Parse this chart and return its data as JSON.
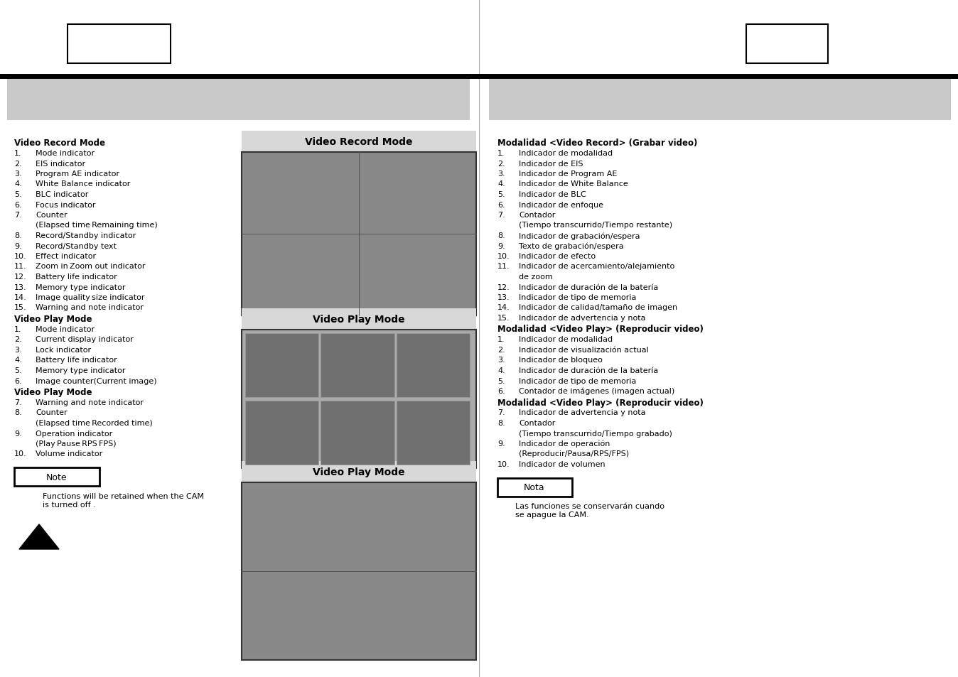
{
  "bg_color": "#ffffff",
  "left_header_text": "Video Record Mode",
  "left_items": [
    [
      "1.",
      "Mode indicator"
    ],
    [
      "2.",
      "EIS indicator"
    ],
    [
      "3.",
      "Program AE indicator"
    ],
    [
      "4.",
      "White Balance indicator"
    ],
    [
      "5.",
      "BLC indicator"
    ],
    [
      "6.",
      "Focus indicator"
    ],
    [
      "7.",
      "Counter"
    ],
    [
      "",
      "(Elapsed time Remaining time)"
    ],
    [
      "8.",
      "Record/Standby indicator"
    ],
    [
      "9.",
      "Record/Standby text"
    ],
    [
      "10.",
      "Effect indicator"
    ],
    [
      "11.",
      "Zoom in Zoom out indicator"
    ],
    [
      "12.",
      "Battery life indicator"
    ],
    [
      "13.",
      "Memory type indicator"
    ],
    [
      "14.",
      "Image quality size indicator"
    ],
    [
      "15.",
      "Warning and note indicator"
    ]
  ],
  "left_header2": "Video Play Mode",
  "left_items2": [
    [
      "1.",
      "Mode indicator"
    ],
    [
      "2.",
      "Current display indicator"
    ],
    [
      "3.",
      "Lock indicator"
    ],
    [
      "4.",
      "Battery life indicator"
    ],
    [
      "5.",
      "Memory type indicator"
    ],
    [
      "6.",
      "Image counter(Current image)"
    ]
  ],
  "left_header3": "Video Play Mode",
  "left_items3": [
    [
      "7.",
      "Warning and note indicator"
    ],
    [
      "8.",
      "Counter"
    ],
    [
      "",
      "(Elapsed time Recorded time)"
    ],
    [
      "9.",
      "Operation indicator"
    ],
    [
      "",
      "(Play Pause RPS FPS)"
    ],
    [
      "10.",
      "Volume indicator"
    ]
  ],
  "right_header_text": "Modalidad <Video Record> (Grabar video)",
  "right_items": [
    [
      "1.",
      "Indicador de modalidad"
    ],
    [
      "2.",
      "Indicador de EIS"
    ],
    [
      "3.",
      "Indicador de Program AE"
    ],
    [
      "4.",
      "Indicador de White Balance"
    ],
    [
      "5.",
      "Indicador de BLC"
    ],
    [
      "6.",
      "Indicador de enfoque"
    ],
    [
      "7.",
      "Contador"
    ],
    [
      "",
      "(Tiempo transcurrido/Tiempo restante)"
    ],
    [
      "8.",
      "Indicador de grabación/espera"
    ],
    [
      "9.",
      "Texto de grabación/espera"
    ],
    [
      "10.",
      "Indicador de efecto"
    ],
    [
      "11.",
      "Indicador de acercamiento/alejamiento"
    ],
    [
      "",
      "de zoom"
    ],
    [
      "12.",
      "Indicador de duración de la batería"
    ],
    [
      "13.",
      "Indicador de tipo de memoria"
    ],
    [
      "14.",
      "Indicador de calidad/tamaño de imagen"
    ],
    [
      "15.",
      "Indicador de advertencia y nota"
    ]
  ],
  "right_header2": "Modalidad <Video Play> (Reproducir video)",
  "right_items2": [
    [
      "1.",
      "Indicador de modalidad"
    ],
    [
      "2.",
      "Indicador de visualización actual"
    ],
    [
      "3.",
      "Indicador de bloqueo"
    ],
    [
      "4.",
      "Indicador de duración de la batería"
    ],
    [
      "5.",
      "Indicador de tipo de memoria"
    ],
    [
      "6.",
      "Contador de imágenes (imagen actual)"
    ]
  ],
  "right_header3": "Modalidad <Video Play> (Reproducir video)",
  "right_items3": [
    [
      "7.",
      "Indicador de advertencia y nota"
    ],
    [
      "8.",
      "Contador"
    ],
    [
      "",
      "(Tiempo transcurrido/Tiempo grabado)"
    ],
    [
      "9.",
      "Indicador de operación"
    ],
    [
      "",
      "(Reproducir/Pausa/RPS/FPS)"
    ],
    [
      "10.",
      "Indicador de volumen"
    ]
  ],
  "center_labels": [
    "Video Record Mode",
    "Video Play Mode",
    "Video Play Mode"
  ],
  "note_left_title": "Note",
  "note_left_text": "Functions will be retained when the CAM\nis turned off .",
  "note_right_title": "Nota",
  "note_right_text": "Las funciones se conservarán cuando\nse apague la CAM."
}
